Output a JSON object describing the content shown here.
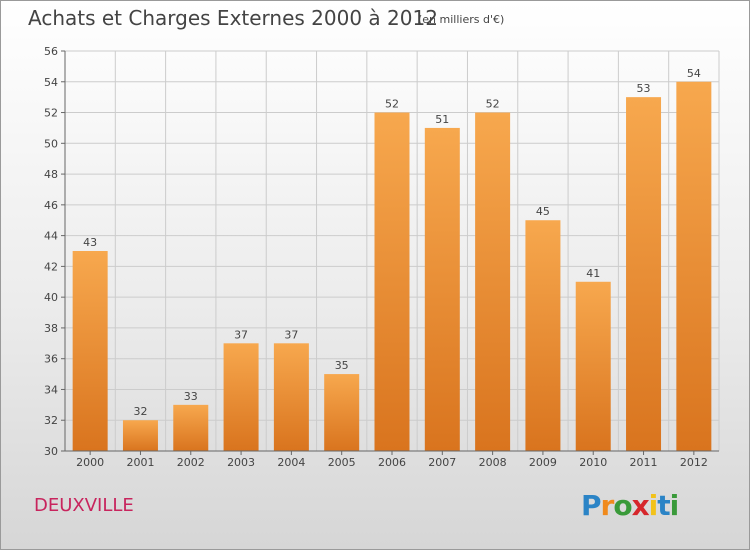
{
  "header": {
    "title": "Achats et Charges Externes 2000 à 2012",
    "unit": "(en milliers d'€)"
  },
  "footer": {
    "commune": "DEUXVILLE",
    "brand": "Proxiti",
    "brand_colors": [
      "#2b84c6",
      "#f08a1c",
      "#3a9a3a",
      "#d6262b",
      "#f2c21a",
      "#2b84c6",
      "#3a9a3a"
    ]
  },
  "chart_data": {
    "type": "bar",
    "title": "Achats et Charges Externes 2000 à 2012",
    "subtitle": "(en milliers d'€)",
    "xlabel": "",
    "ylabel": "",
    "categories": [
      "2000",
      "2001",
      "2002",
      "2003",
      "2004",
      "2005",
      "2006",
      "2007",
      "2008",
      "2009",
      "2010",
      "2011",
      "2012"
    ],
    "values": [
      43,
      32,
      33,
      37,
      37,
      35,
      52,
      51,
      52,
      45,
      41,
      53,
      54
    ],
    "ylim": [
      30,
      56
    ],
    "yticks": [
      30,
      32,
      34,
      36,
      38,
      40,
      42,
      44,
      46,
      48,
      50,
      52,
      54,
      56
    ],
    "grid": true,
    "colors": {
      "bar_top": "#f7a84e",
      "bar_bottom": "#d9741e",
      "grid": "#cccccc",
      "axis": "#666666",
      "text": "#444444"
    }
  }
}
